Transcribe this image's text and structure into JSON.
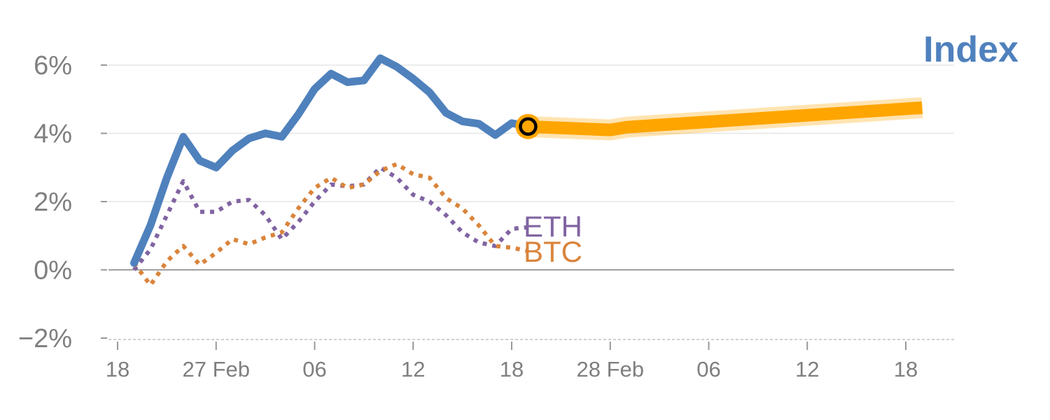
{
  "chart_data": {
    "type": "line",
    "title": "Index",
    "xlabel": "",
    "ylabel": "",
    "ylim": [
      -2,
      7
    ],
    "y_ticks": [
      -2,
      0,
      2,
      4,
      6
    ],
    "y_tick_labels": [
      "−2%",
      "0%",
      "2%",
      "4%",
      "6%"
    ],
    "x_tick_labels": [
      "18",
      "27 Feb",
      "06",
      "12",
      "18",
      "28 Feb",
      "06",
      "12",
      "18"
    ],
    "x_tick_positions": [
      0,
      6,
      12,
      18,
      24,
      30,
      36,
      42,
      48
    ],
    "grid": true,
    "colors": {
      "index": "#4f81bd",
      "eth": "#8064a2",
      "btc": "#d9843b",
      "projection": "#ffa500",
      "axis": "#7f7f7f",
      "grid": "#e6e6e6",
      "title": "#4f81bd"
    },
    "series": [
      {
        "key": "index",
        "name": "Index",
        "style": "solid",
        "x": [
          1,
          2,
          3,
          4,
          5,
          6,
          7,
          8,
          9,
          10,
          11,
          12,
          13,
          14,
          15,
          16,
          17,
          18,
          19,
          20,
          21,
          22,
          23,
          24,
          25
        ],
        "y": [
          0.2,
          1.3,
          2.7,
          3.9,
          3.2,
          3.0,
          3.5,
          3.85,
          4.0,
          3.9,
          4.55,
          5.3,
          5.75,
          5.5,
          5.55,
          6.2,
          5.95,
          5.6,
          5.2,
          4.6,
          4.35,
          4.28,
          3.95,
          4.3,
          4.2
        ]
      },
      {
        "key": "eth",
        "name": "ETH",
        "style": "dotted",
        "x": [
          1,
          2,
          3,
          4,
          5,
          6,
          7,
          8,
          9,
          10,
          11,
          12,
          13,
          14,
          15,
          16,
          17,
          18,
          19,
          20,
          21,
          22,
          23,
          24,
          25
        ],
        "y": [
          0.0,
          0.6,
          1.6,
          2.6,
          1.7,
          1.7,
          2.0,
          2.05,
          1.6,
          0.9,
          1.4,
          2.0,
          2.5,
          2.45,
          2.5,
          3.0,
          2.7,
          2.2,
          2.0,
          1.6,
          1.1,
          0.8,
          0.7,
          1.2,
          1.25
        ]
      },
      {
        "key": "btc",
        "name": "BTC",
        "style": "dotted",
        "x": [
          1,
          2,
          3,
          4,
          5,
          6,
          7,
          8,
          9,
          10,
          11,
          12,
          13,
          14,
          15,
          16,
          17,
          18,
          19,
          20,
          21,
          22,
          23,
          24,
          25
        ],
        "y": [
          0.2,
          -0.45,
          0.25,
          0.7,
          0.15,
          0.5,
          0.9,
          0.75,
          0.95,
          1.1,
          1.8,
          2.4,
          2.7,
          2.4,
          2.5,
          2.9,
          3.1,
          2.8,
          2.7,
          2.1,
          1.8,
          1.3,
          0.7,
          0.65,
          0.55
        ]
      },
      {
        "key": "projection",
        "name": "",
        "style": "solid",
        "x": [
          25,
          30,
          31,
          49
        ],
        "y": [
          4.2,
          4.1,
          4.18,
          4.75
        ]
      }
    ],
    "marker": {
      "x": 25,
      "y": 4.2
    }
  }
}
